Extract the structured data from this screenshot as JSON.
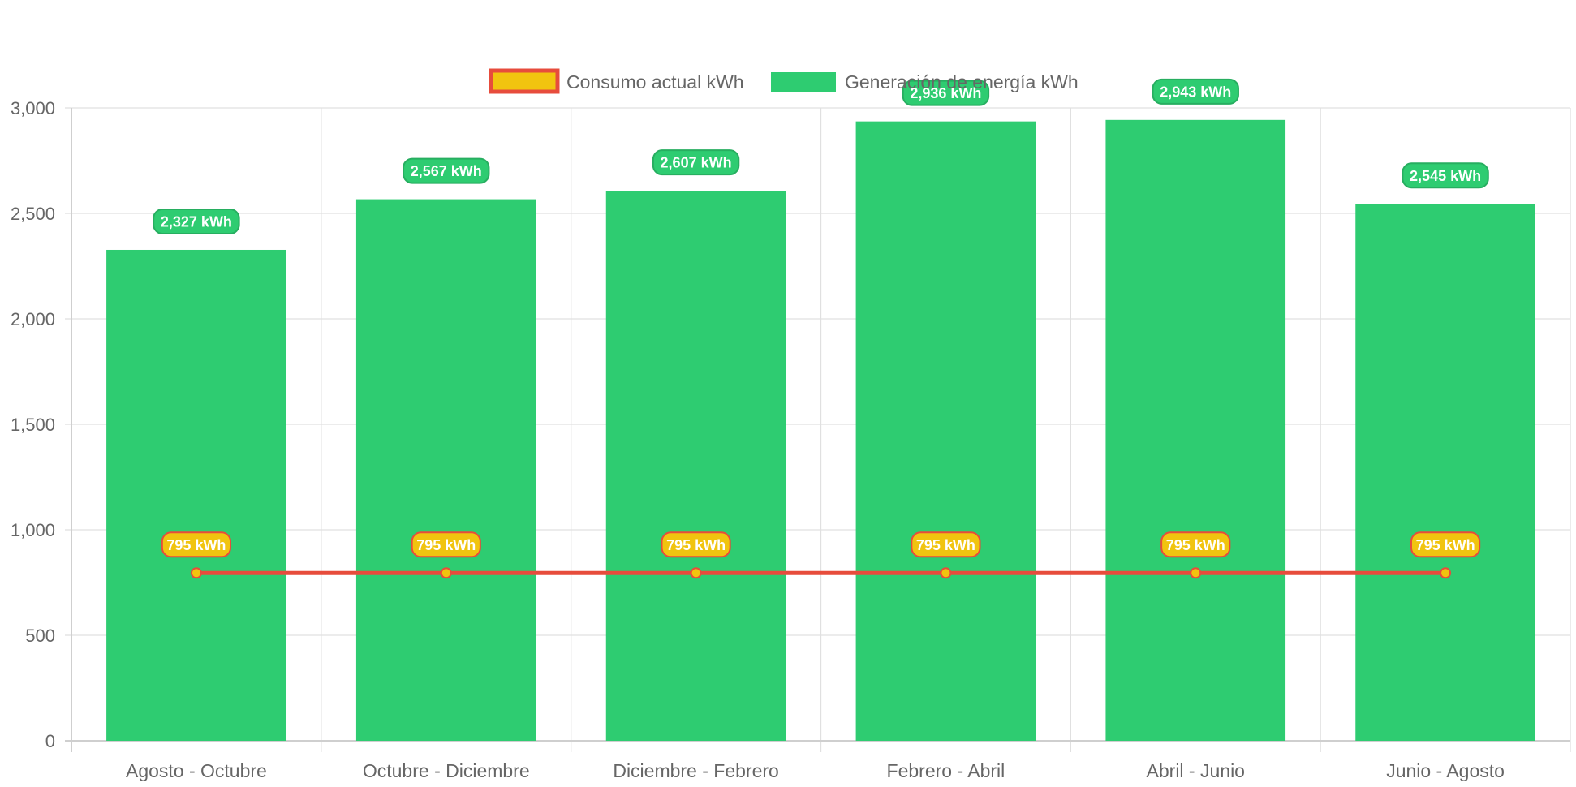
{
  "chart_data": {
    "type": "bar",
    "title": "",
    "xlabel": "",
    "ylabel": "",
    "categories": [
      "Agosto - Octubre",
      "Octubre - Diciembre",
      "Diciembre - Febrero",
      "Febrero - Abril",
      "Abril - Junio",
      "Junio - Agosto"
    ],
    "ylim": [
      0,
      3000
    ],
    "yticks": [
      0,
      500,
      1000,
      1500,
      2000,
      2500,
      3000
    ],
    "ytick_labels": [
      "0",
      "500",
      "1,000",
      "1,500",
      "2,000",
      "2,500",
      "3,000"
    ],
    "grid": true,
    "legend_position": "top-center",
    "series": [
      {
        "name": "Consumo actual kWh",
        "type": "line",
        "values": [
          795,
          795,
          795,
          795,
          795,
          795
        ],
        "labels": [
          "795 kWh",
          "795 kWh",
          "795 kWh",
          "795 kWh",
          "795 kWh",
          "795 kWh"
        ],
        "color": "#f1c40f",
        "border_color": "#e74c3c"
      },
      {
        "name": "Generación de energía kWh",
        "type": "bar",
        "values": [
          2327,
          2567,
          2607,
          2936,
          2943,
          2545
        ],
        "labels": [
          "2,327 kWh",
          "2,567 kWh",
          "2,607 kWh",
          "2,936 kWh",
          "2,943 kWh",
          "2,545 kWh"
        ],
        "color": "#2ecc71",
        "border_color": "#27ae60"
      }
    ]
  }
}
